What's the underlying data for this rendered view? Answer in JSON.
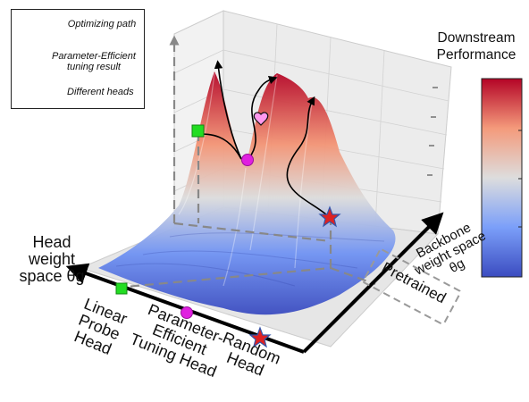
{
  "legend": {
    "path_label": "Optimizing path",
    "result_label": "Parameter-Efficient tuning result",
    "heads_label": "Different heads"
  },
  "colorbar": {
    "title": "Downstream Performance",
    "color_low": "#3b4cc0",
    "color_mid": "#dddddd",
    "color_high": "#b40426"
  },
  "axes": {
    "head_axis_label": "Head weight space θg",
    "backbone_axis_label": "Backbone weight space θg",
    "heads": [
      {
        "label": "Linear Probe Head",
        "marker": "green-square"
      },
      {
        "label": "Parameter-Efficient Tuning Head",
        "marker": "magenta-circle"
      },
      {
        "label": "Random Head",
        "marker": "red-star"
      }
    ],
    "pretrained_label": "Pretrained"
  },
  "colors": {
    "green": "#22dd22",
    "magenta": "#e020e0",
    "red": "#dd2222",
    "star_edge": "#3355aa",
    "dashed": "#888888"
  }
}
